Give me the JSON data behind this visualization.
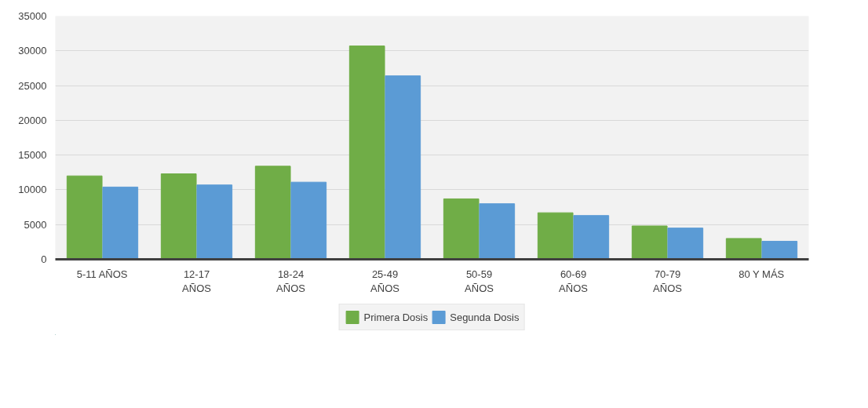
{
  "chart_data": {
    "type": "bar",
    "categories": [
      "5-11 AÑOS",
      "12-17 AÑOS",
      "18-24 AÑOS",
      "25-49 AÑOS",
      "50-59 AÑOS",
      "60-69 AÑOS",
      "70-79 AÑOS",
      "80 Y MÁS"
    ],
    "series": [
      {
        "name": "Primera Dosis",
        "color": "#70ad47",
        "values": [
          12000,
          12300,
          13400,
          30700,
          8700,
          6700,
          4800,
          3000
        ]
      },
      {
        "name": "Segunda Dosis",
        "color": "#5b9bd5",
        "values": [
          10400,
          10700,
          11100,
          26400,
          8000,
          6300,
          4500,
          2600
        ]
      }
    ],
    "ylim": [
      0,
      35000
    ],
    "yticks": [
      0,
      5000,
      10000,
      15000,
      20000,
      25000,
      30000,
      35000
    ],
    "grid": "y",
    "legend": "bottom"
  }
}
